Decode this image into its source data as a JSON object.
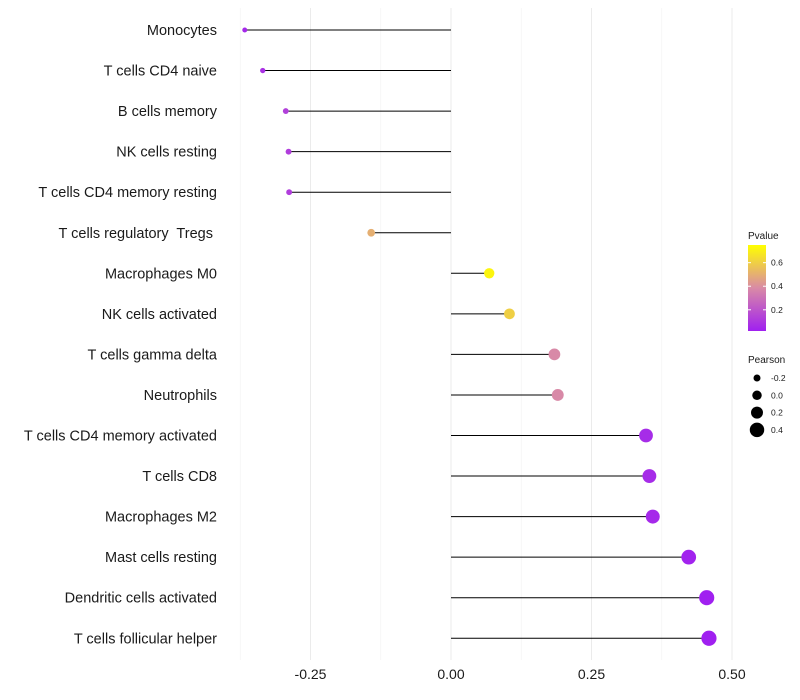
{
  "chart_data": {
    "type": "lollipop",
    "title": "",
    "xlabel": "",
    "ylabel": "",
    "xlim": [
      -0.375,
      0.5
    ],
    "x_ticks": [
      -0.25,
      0.0,
      0.25,
      0.5
    ],
    "x_tick_labels": [
      "-0.25",
      "0.00",
      "0.25",
      "0.50"
    ],
    "baseline": 0,
    "grid": true,
    "points": [
      {
        "category": "Monocytes",
        "value": -0.367,
        "pvalue": 0.05
      },
      {
        "category": "T cells CD4 naive",
        "value": -0.335,
        "pvalue": 0.08
      },
      {
        "category": "B cells memory",
        "value": -0.294,
        "pvalue": 0.13
      },
      {
        "category": "NK cells resting",
        "value": -0.289,
        "pvalue": 0.12
      },
      {
        "category": "T cells CD4 memory resting",
        "value": -0.288,
        "pvalue": 0.12
      },
      {
        "category": "T cells regulatory  Tregs ",
        "value": -0.142,
        "pvalue": 0.5
      },
      {
        "category": "Macrophages M0",
        "value": 0.068,
        "pvalue": 0.72
      },
      {
        "category": "NK cells activated",
        "value": 0.104,
        "pvalue": 0.6
      },
      {
        "category": "T cells gamma delta",
        "value": 0.184,
        "pvalue": 0.38
      },
      {
        "category": "Neutrophils",
        "value": 0.19,
        "pvalue": 0.38
      },
      {
        "category": "T cells CD4 memory activated",
        "value": 0.347,
        "pvalue": 0.06
      },
      {
        "category": "T cells CD8",
        "value": 0.353,
        "pvalue": 0.06
      },
      {
        "category": "Macrophages M2",
        "value": 0.359,
        "pvalue": 0.05
      },
      {
        "category": "Mast cells resting",
        "value": 0.423,
        "pvalue": 0.03
      },
      {
        "category": "Dendritic cells activated",
        "value": 0.455,
        "pvalue": 0.02
      },
      {
        "category": "T cells follicular helper",
        "value": 0.459,
        "pvalue": 0.02
      }
    ],
    "legend": {
      "placement": "right",
      "color": {
        "title": "Pvalue",
        "range": [
          0.02,
          0.75
        ],
        "ticks": [
          0.2,
          0.4,
          0.6
        ],
        "tick_labels": [
          "0.2",
          "0.4",
          "0.6"
        ],
        "low_color": "#a020f0",
        "mid_color": "#d98aa6",
        "high_color": "#ffff00"
      },
      "size": {
        "title": "Pearson",
        "values": [
          -0.2,
          0.0,
          0.2,
          0.4
        ],
        "labels": [
          "-0.2",
          "0.0",
          "0.2",
          "0.4"
        ]
      }
    }
  }
}
